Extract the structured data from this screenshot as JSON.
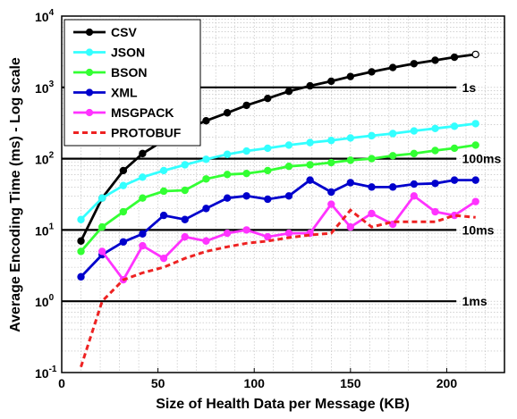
{
  "chart_data": {
    "type": "line",
    "title": "",
    "xlabel": "Size of Health Data per Message (KB)",
    "ylabel": "Average Encoding Time (ms) - Log scale",
    "xlim": [
      0,
      230
    ],
    "ylim": [
      0.1,
      10000
    ],
    "yscale": "log",
    "grid": true,
    "legend_position": "top-left",
    "x_ticks": [
      0,
      50,
      100,
      150,
      200
    ],
    "y_ticks": [
      {
        "value": 0.1,
        "base": "10",
        "exp": "-1"
      },
      {
        "value": 1,
        "base": "10",
        "exp": "0"
      },
      {
        "value": 10,
        "base": "10",
        "exp": "1"
      },
      {
        "value": 100,
        "base": "10",
        "exp": "2"
      },
      {
        "value": 1000,
        "base": "10",
        "exp": "3"
      },
      {
        "value": 10000,
        "base": "10",
        "exp": "4"
      }
    ],
    "reference_lines": [
      {
        "value": 1000,
        "label": "1s"
      },
      {
        "value": 100,
        "label": "100ms"
      },
      {
        "value": 10,
        "label": "10ms"
      },
      {
        "value": 1,
        "label": "1ms"
      }
    ],
    "series": [
      {
        "name": "CSV",
        "color": "#000000",
        "marker": "circle",
        "dash": false,
        "x": [
          10,
          21,
          32,
          42,
          53,
          64,
          75,
          86,
          96,
          107,
          118,
          129,
          140,
          150,
          161,
          172,
          183,
          194,
          204,
          215
        ],
        "y": [
          7,
          28,
          68,
          118,
          180,
          255,
          340,
          440,
          560,
          700,
          880,
          1050,
          1220,
          1420,
          1650,
          1900,
          2150,
          2400,
          2650,
          2900
        ]
      },
      {
        "name": "JSON",
        "color": "#33ffff",
        "marker": "circle",
        "dash": false,
        "x": [
          10,
          21,
          32,
          42,
          53,
          64,
          75,
          86,
          96,
          107,
          118,
          129,
          140,
          150,
          161,
          172,
          183,
          194,
          204,
          215
        ],
        "y": [
          14,
          28,
          42,
          55,
          68,
          82,
          98,
          115,
          128,
          140,
          155,
          168,
          180,
          195,
          210,
          225,
          245,
          265,
          285,
          310
        ]
      },
      {
        "name": "BSON",
        "color": "#33ff33",
        "marker": "circle",
        "dash": false,
        "x": [
          10,
          21,
          32,
          42,
          53,
          64,
          75,
          86,
          96,
          107,
          118,
          129,
          140,
          150,
          161,
          172,
          183,
          194,
          204,
          215
        ],
        "y": [
          5,
          11,
          18,
          28,
          35,
          36,
          52,
          60,
          62,
          68,
          78,
          82,
          88,
          95,
          100,
          110,
          118,
          130,
          140,
          155
        ]
      },
      {
        "name": "XML",
        "color": "#0000cc",
        "marker": "circle",
        "dash": false,
        "x": [
          10,
          21,
          32,
          42,
          53,
          64,
          75,
          86,
          96,
          107,
          118,
          129,
          140,
          150,
          161,
          172,
          183,
          194,
          204,
          215
        ],
        "y": [
          2.2,
          4.5,
          6.8,
          8.8,
          16,
          14,
          20,
          28,
          30,
          27,
          30,
          50,
          34,
          46,
          40,
          40,
          44,
          45,
          50,
          50
        ]
      },
      {
        "name": "MSGPACK",
        "color": "#ff33ff",
        "marker": "circle",
        "dash": false,
        "x": [
          10,
          21,
          32,
          42,
          53,
          64,
          75,
          86,
          96,
          107,
          118,
          129,
          140,
          150,
          161,
          172,
          183,
          194,
          204,
          215
        ],
        "y": [
          null,
          5,
          2,
          6,
          4,
          8,
          7,
          9,
          10,
          8,
          9,
          9,
          23,
          11,
          17,
          12,
          30,
          18,
          16,
          25
        ]
      },
      {
        "name": "PROTOBUF",
        "color": "#ee2222",
        "marker": "none",
        "dash": true,
        "x": [
          10,
          21,
          32,
          42,
          53,
          64,
          75,
          86,
          96,
          107,
          118,
          129,
          140,
          150,
          161,
          172,
          183,
          194,
          204,
          215
        ],
        "y": [
          0.12,
          1.0,
          2.0,
          2.5,
          3.0,
          4.0,
          5.0,
          5.8,
          6.5,
          7.0,
          7.8,
          8.5,
          9.0,
          19.0,
          11.0,
          13.0,
          13.0,
          13.0,
          16.0,
          15.0
        ]
      }
    ]
  }
}
